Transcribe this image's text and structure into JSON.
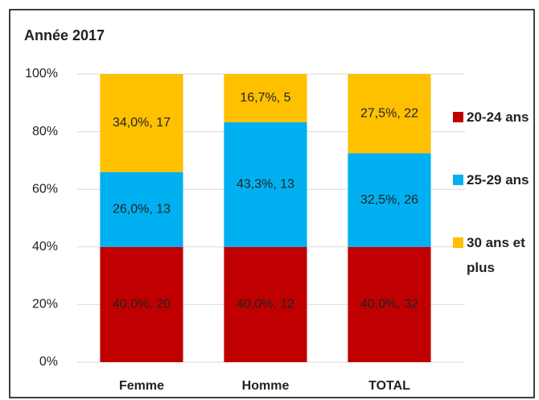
{
  "chart_data": {
    "type": "stacked_bar_100",
    "title": "Année 2017",
    "categories": [
      "Femme",
      "Homme",
      "TOTAL"
    ],
    "series": [
      {
        "name": "20-24 ans",
        "color": "#c00000",
        "values": [
          40.0,
          40.0,
          40.0
        ],
        "value_labels": [
          "40,0%, 20",
          "40,0%, 12",
          "40,0%, 32"
        ]
      },
      {
        "name": "25-29 ans",
        "color": "#00b0f0",
        "values": [
          26.0,
          43.3,
          32.5
        ],
        "value_labels": [
          "26,0%, 13",
          "43,3%, 13",
          "32,5%, 26"
        ]
      },
      {
        "name": "30 ans et plus",
        "color": "#ffc000",
        "values": [
          34.0,
          16.7,
          27.5
        ],
        "value_labels": [
          "34,0%, 17",
          "16,7%, 5",
          "27,5%, 22"
        ]
      }
    ],
    "ylim": [
      0,
      100
    ],
    "yticks": [
      {
        "value": 0,
        "label": "0%"
      },
      {
        "value": 20,
        "label": "20%"
      },
      {
        "value": 40,
        "label": "40%"
      },
      {
        "value": 60,
        "label": "60%"
      },
      {
        "value": 80,
        "label": "80%"
      },
      {
        "value": 100,
        "label": "100%"
      }
    ],
    "grid": true,
    "legend": "right"
  }
}
